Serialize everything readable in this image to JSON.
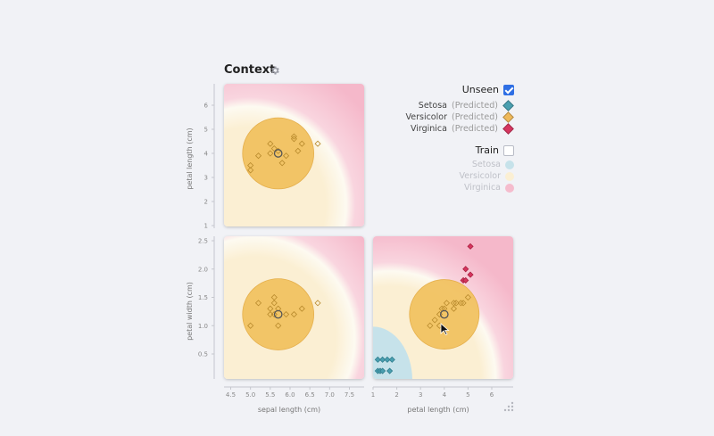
{
  "title": "Context",
  "icons": {
    "settings": "gear-icon",
    "resize": "grip-icon"
  },
  "colors": {
    "setosa": "#4a9fb0",
    "versicolor": "#efb95a",
    "virginica": "#d6355f",
    "setosa_region": "#c6e2ea",
    "versicolor_region": "#fbefd3",
    "virginica_region": "#f5bccd",
    "circle_fill": "#f2c261"
  },
  "legend": {
    "unseen": {
      "label": "Unseen",
      "checked": true
    },
    "unseen_items": [
      {
        "name": "Setosa",
        "suffix": "(Predicted)"
      },
      {
        "name": "Versicolor",
        "suffix": "(Predicted)"
      },
      {
        "name": "Virginica",
        "suffix": "(Predicted)"
      }
    ],
    "train": {
      "label": "Train",
      "checked": false
    },
    "train_items": [
      {
        "name": "Setosa"
      },
      {
        "name": "Versicolor"
      },
      {
        "name": "Virginica"
      }
    ]
  },
  "chart_data": {
    "type": "scatter",
    "axes": {
      "sepal_length": {
        "label": "sepal length (cm)",
        "range": [
          4.3,
          7.9
        ],
        "ticks": [
          4.5,
          5.0,
          5.5,
          6.0,
          6.5,
          7.0,
          7.5
        ]
      },
      "petal_length": {
        "label": "petal length (cm)",
        "range": [
          1.0,
          6.9
        ],
        "ticks": [
          1,
          2,
          3,
          4,
          5,
          6
        ]
      },
      "petal_width": {
        "label": "petal width (cm)",
        "range": [
          0.1,
          2.5
        ],
        "ticks": [
          0.5,
          1.0,
          1.5,
          2.0,
          2.5
        ]
      }
    },
    "axis_tick_labels": {
      "x_sepal": [
        "4.5",
        "5.0",
        "5.5",
        "6.0",
        "6.5",
        "7.0",
        "7.5"
      ],
      "x_petal": [
        "1",
        "2",
        "3",
        "4",
        "5",
        "6"
      ],
      "y_petal_length": [
        "1",
        "2",
        "3",
        "4",
        "5",
        "6"
      ],
      "y_petal_width": [
        "0.5",
        "1.0",
        "1.5",
        "2.0",
        "2.5"
      ]
    },
    "context_point": {
      "sepal_length": 5.7,
      "petal_length": 4.0,
      "petal_width": 1.2
    },
    "panels": [
      {
        "id": "sepal-vs-petal-length",
        "x": "sepal_length",
        "y": "petal_length",
        "circle_radius": 1.8,
        "points": [
          {
            "x": 5.0,
            "y": 3.3,
            "cls": "versicolor"
          },
          {
            "x": 5.0,
            "y": 3.5,
            "cls": "versicolor"
          },
          {
            "x": 5.2,
            "y": 3.9,
            "cls": "versicolor"
          },
          {
            "x": 5.5,
            "y": 4.0,
            "cls": "versicolor"
          },
          {
            "x": 5.5,
            "y": 4.4,
            "cls": "versicolor"
          },
          {
            "x": 5.6,
            "y": 4.2,
            "cls": "versicolor"
          },
          {
            "x": 5.7,
            "y": 4.1,
            "cls": "versicolor"
          },
          {
            "x": 5.8,
            "y": 3.6,
            "cls": "versicolor"
          },
          {
            "x": 5.9,
            "y": 3.9,
            "cls": "versicolor"
          },
          {
            "x": 6.1,
            "y": 4.6,
            "cls": "versicolor"
          },
          {
            "x": 6.1,
            "y": 4.7,
            "cls": "versicolor"
          },
          {
            "x": 6.2,
            "y": 4.1,
            "cls": "versicolor"
          },
          {
            "x": 6.3,
            "y": 4.4,
            "cls": "versicolor"
          },
          {
            "x": 6.7,
            "y": 4.4,
            "cls": "versicolor"
          }
        ]
      },
      {
        "id": "sepal-length-vs-petal-width",
        "x": "sepal_length",
        "y": "petal_width",
        "circle_radius": 1.8,
        "points": [
          {
            "x": 5.0,
            "y": 1.0,
            "cls": "versicolor"
          },
          {
            "x": 5.2,
            "y": 1.4,
            "cls": "versicolor"
          },
          {
            "x": 5.5,
            "y": 1.2,
            "cls": "versicolor"
          },
          {
            "x": 5.5,
            "y": 1.3,
            "cls": "versicolor"
          },
          {
            "x": 5.6,
            "y": 1.2,
            "cls": "versicolor"
          },
          {
            "x": 5.6,
            "y": 1.4,
            "cls": "versicolor"
          },
          {
            "x": 5.6,
            "y": 1.5,
            "cls": "versicolor"
          },
          {
            "x": 5.7,
            "y": 1.0,
            "cls": "versicolor"
          },
          {
            "x": 5.7,
            "y": 1.3,
            "cls": "versicolor"
          },
          {
            "x": 5.9,
            "y": 1.2,
            "cls": "versicolor"
          },
          {
            "x": 6.1,
            "y": 1.2,
            "cls": "versicolor"
          },
          {
            "x": 6.3,
            "y": 1.3,
            "cls": "versicolor"
          },
          {
            "x": 6.7,
            "y": 1.4,
            "cls": "versicolor"
          }
        ]
      },
      {
        "id": "petal-length-vs-petal-width",
        "x": "petal_length",
        "y": "petal_width",
        "circle_radius": 1.5,
        "points": [
          {
            "x": 1.2,
            "y": 0.2,
            "cls": "setosa"
          },
          {
            "x": 1.3,
            "y": 0.2,
            "cls": "setosa"
          },
          {
            "x": 1.4,
            "y": 0.2,
            "cls": "setosa"
          },
          {
            "x": 1.7,
            "y": 0.2,
            "cls": "setosa"
          },
          {
            "x": 1.2,
            "y": 0.4,
            "cls": "setosa"
          },
          {
            "x": 1.4,
            "y": 0.4,
            "cls": "setosa"
          },
          {
            "x": 1.6,
            "y": 0.4,
            "cls": "setosa"
          },
          {
            "x": 1.8,
            "y": 0.4,
            "cls": "setosa"
          },
          {
            "x": 3.4,
            "y": 1.0,
            "cls": "versicolor"
          },
          {
            "x": 3.6,
            "y": 1.1,
            "cls": "versicolor"
          },
          {
            "x": 3.8,
            "y": 1.0,
            "cls": "versicolor"
          },
          {
            "x": 3.8,
            "y": 1.2,
            "cls": "versicolor"
          },
          {
            "x": 3.9,
            "y": 1.3,
            "cls": "versicolor"
          },
          {
            "x": 4.0,
            "y": 1.3,
            "cls": "versicolor"
          },
          {
            "x": 4.1,
            "y": 1.4,
            "cls": "versicolor"
          },
          {
            "x": 4.4,
            "y": 1.3,
            "cls": "versicolor"
          },
          {
            "x": 4.4,
            "y": 1.4,
            "cls": "versicolor"
          },
          {
            "x": 4.5,
            "y": 1.4,
            "cls": "versicolor"
          },
          {
            "x": 4.7,
            "y": 1.4,
            "cls": "versicolor"
          },
          {
            "x": 4.8,
            "y": 1.4,
            "cls": "versicolor"
          },
          {
            "x": 5.0,
            "y": 1.5,
            "cls": "versicolor"
          },
          {
            "x": 4.8,
            "y": 1.8,
            "cls": "virginica"
          },
          {
            "x": 4.9,
            "y": 1.8,
            "cls": "virginica"
          },
          {
            "x": 4.9,
            "y": 2.0,
            "cls": "virginica"
          },
          {
            "x": 5.1,
            "y": 1.9,
            "cls": "virginica"
          },
          {
            "x": 5.1,
            "y": 2.4,
            "cls": "virginica"
          }
        ]
      }
    ]
  }
}
